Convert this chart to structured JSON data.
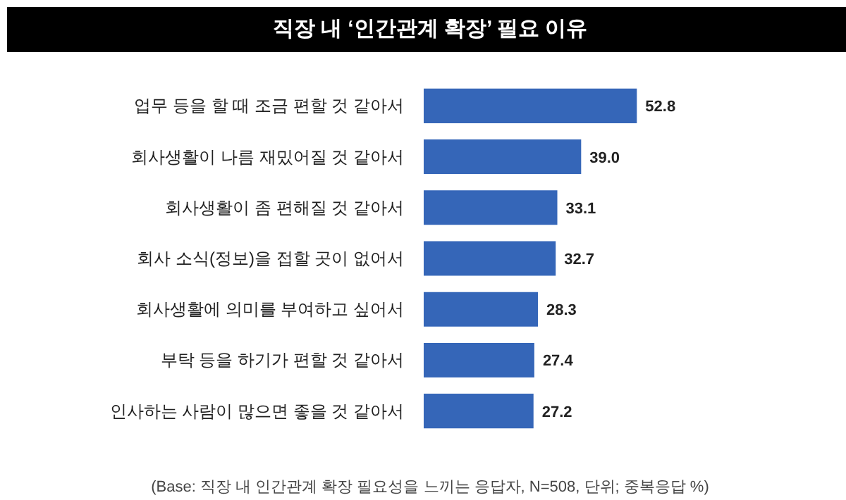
{
  "chart_data": {
    "type": "bar",
    "orientation": "horizontal",
    "title": "직장 내 ‘인간관계 확장’ 필요 이유",
    "categories": [
      "업무 등을 할 때 조금 편할 것 같아서",
      "회사생활이 나름 재밌어질 것 같아서",
      "회사생활이 좀 편해질 것 같아서",
      "회사 소식(정보)을 접할 곳이 없어서",
      "회사생활에 의미를 부여하고 싶어서",
      "부탁 등을 하기가 편할 것 같아서",
      "인사하는 사람이 많으면 좋을 것 같아서"
    ],
    "values": [
      52.8,
      39.0,
      33.1,
      32.7,
      28.3,
      27.4,
      27.2
    ],
    "value_labels": [
      "52.8",
      "39.0",
      "33.1",
      "32.7",
      "28.3",
      "27.4",
      "27.2"
    ],
    "color": "#3566b8",
    "annotations": [
      "(Base: 직장 내 인간관계 확장 필요성을 느끼는 응답자, N=508, 단위; 중복응답 %)"
    ]
  }
}
